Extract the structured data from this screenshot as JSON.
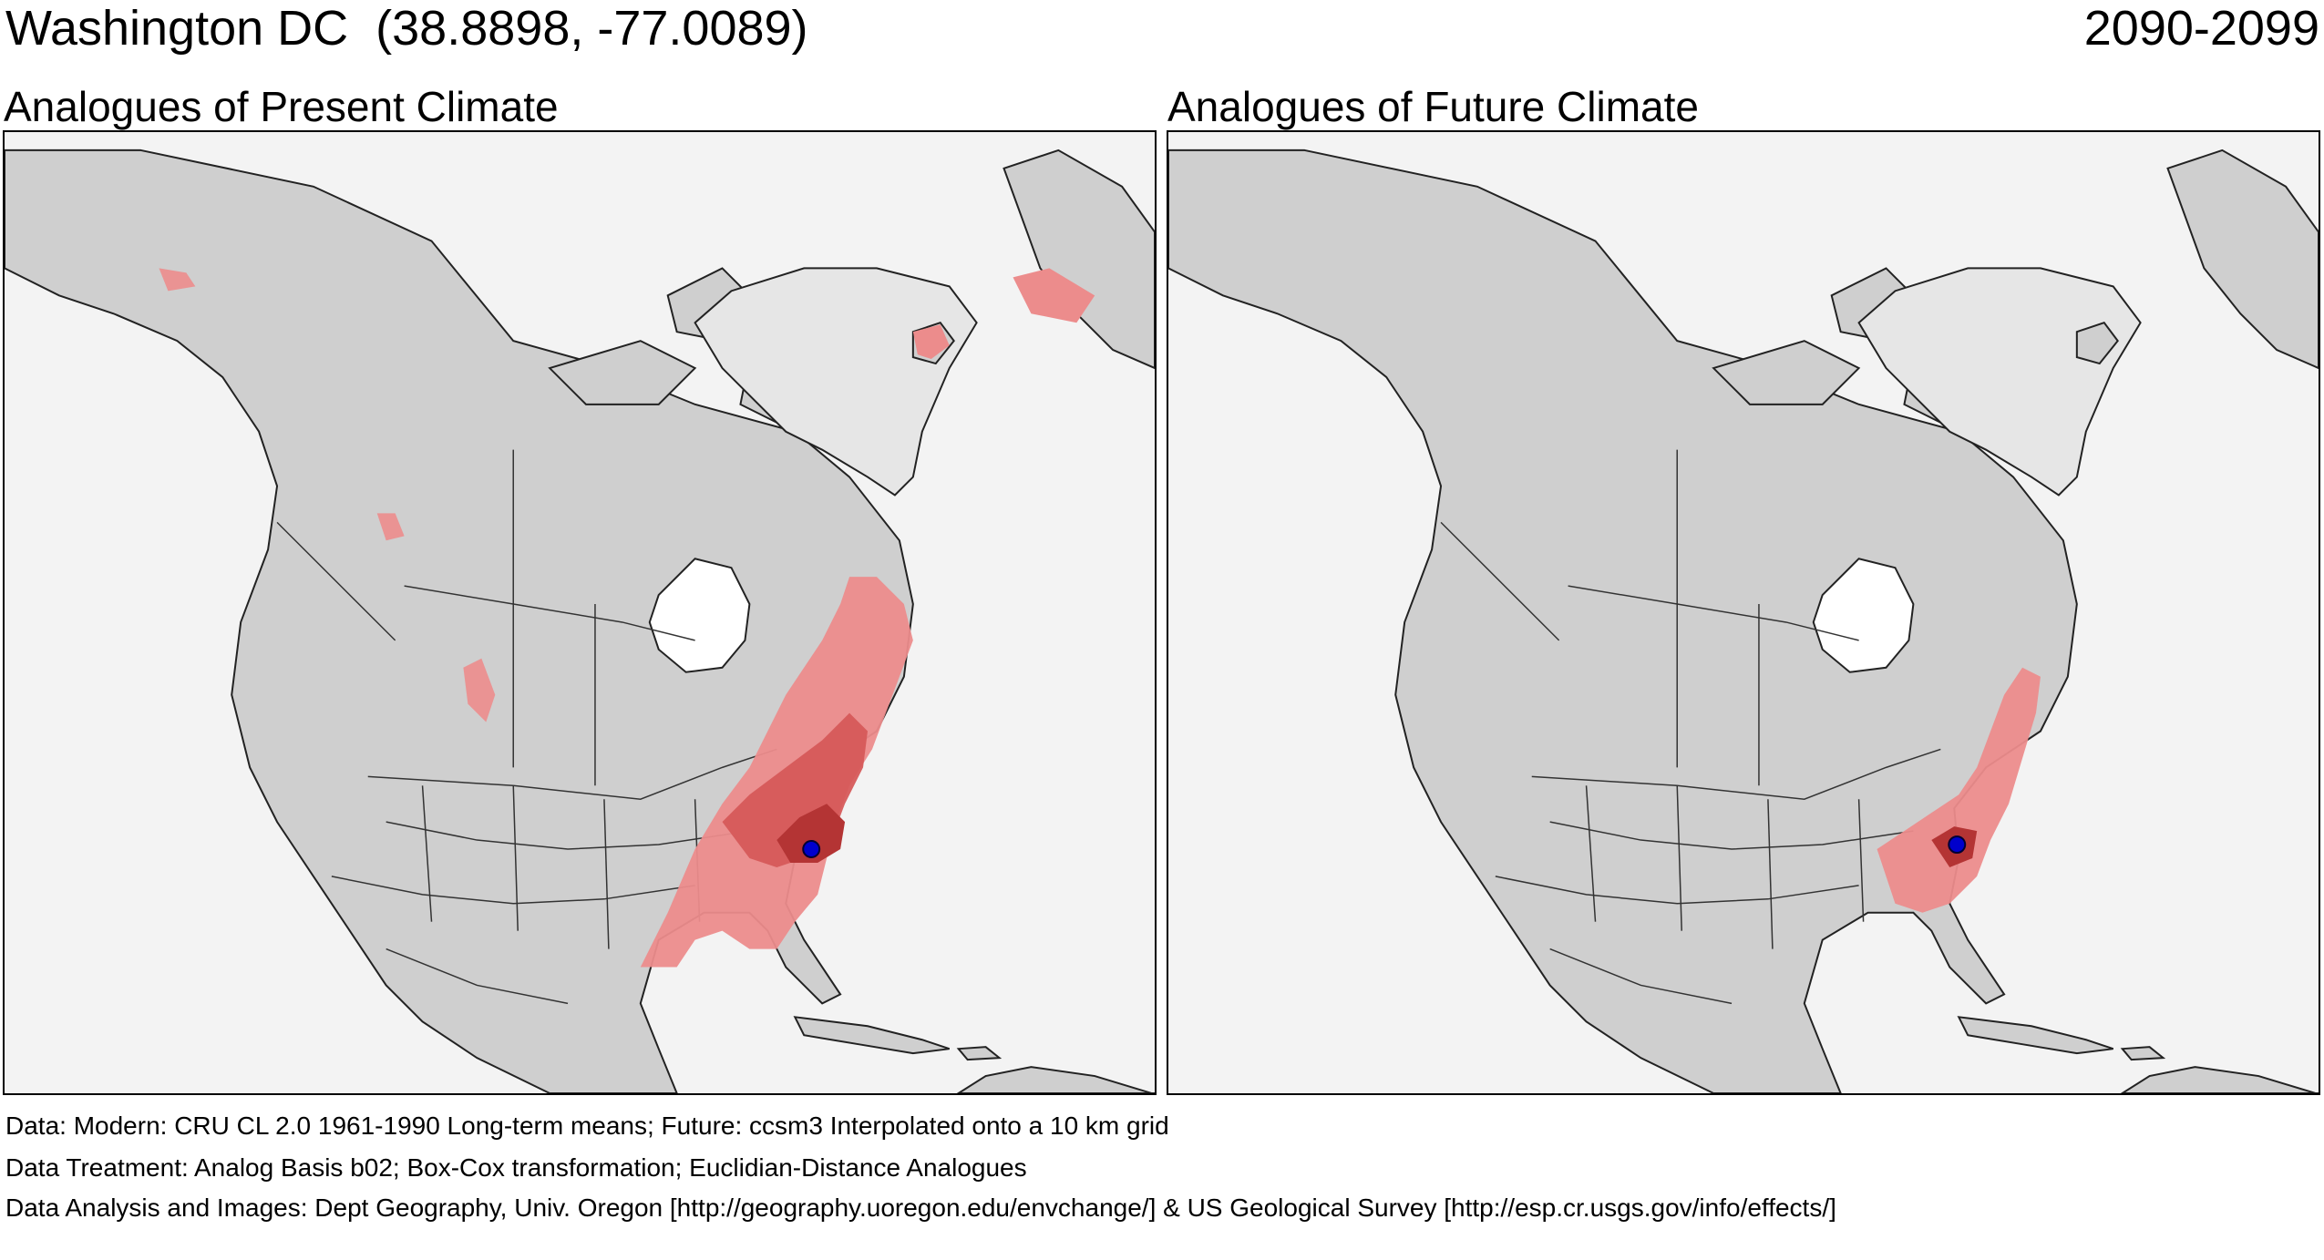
{
  "header": {
    "place": "Washington DC",
    "coords": "(38.8898, -77.0089)",
    "period": "2090-2099"
  },
  "panels": [
    {
      "id": "present",
      "title": "Analogues of Present Climate"
    },
    {
      "id": "future",
      "title": "Analogues of Future Climate"
    }
  ],
  "footer": {
    "data": "Data:  Modern: CRU CL 2.0 1961-1990 Long-term means; Future: ccsm3 Interpolated onto a 10 km grid",
    "treatment": "Data Treatment:  Analog Basis b02; Box-Cox transformation; Euclidian-Distance Analogues",
    "analysis": "Data Analysis and Images:  Dept Geography, Univ. Oregon [http://geography.uoregon.edu/envchange/] & US Geological Survey [http://esp.cr.usgs.gov/info/effects/]"
  },
  "colors": {
    "background": "#f3f3f3",
    "land": "#cfcfcf",
    "greenland": "#e6e6e6",
    "ice": "#ffffff",
    "analog_light": "#ec8c8c",
    "analog_mid": "#d65a5a",
    "analog_dark": "#b43434",
    "site_marker": "#0000cc",
    "border": "#222222"
  },
  "site": {
    "name": "Washington DC",
    "lat": 38.8898,
    "lon": -77.0089
  }
}
